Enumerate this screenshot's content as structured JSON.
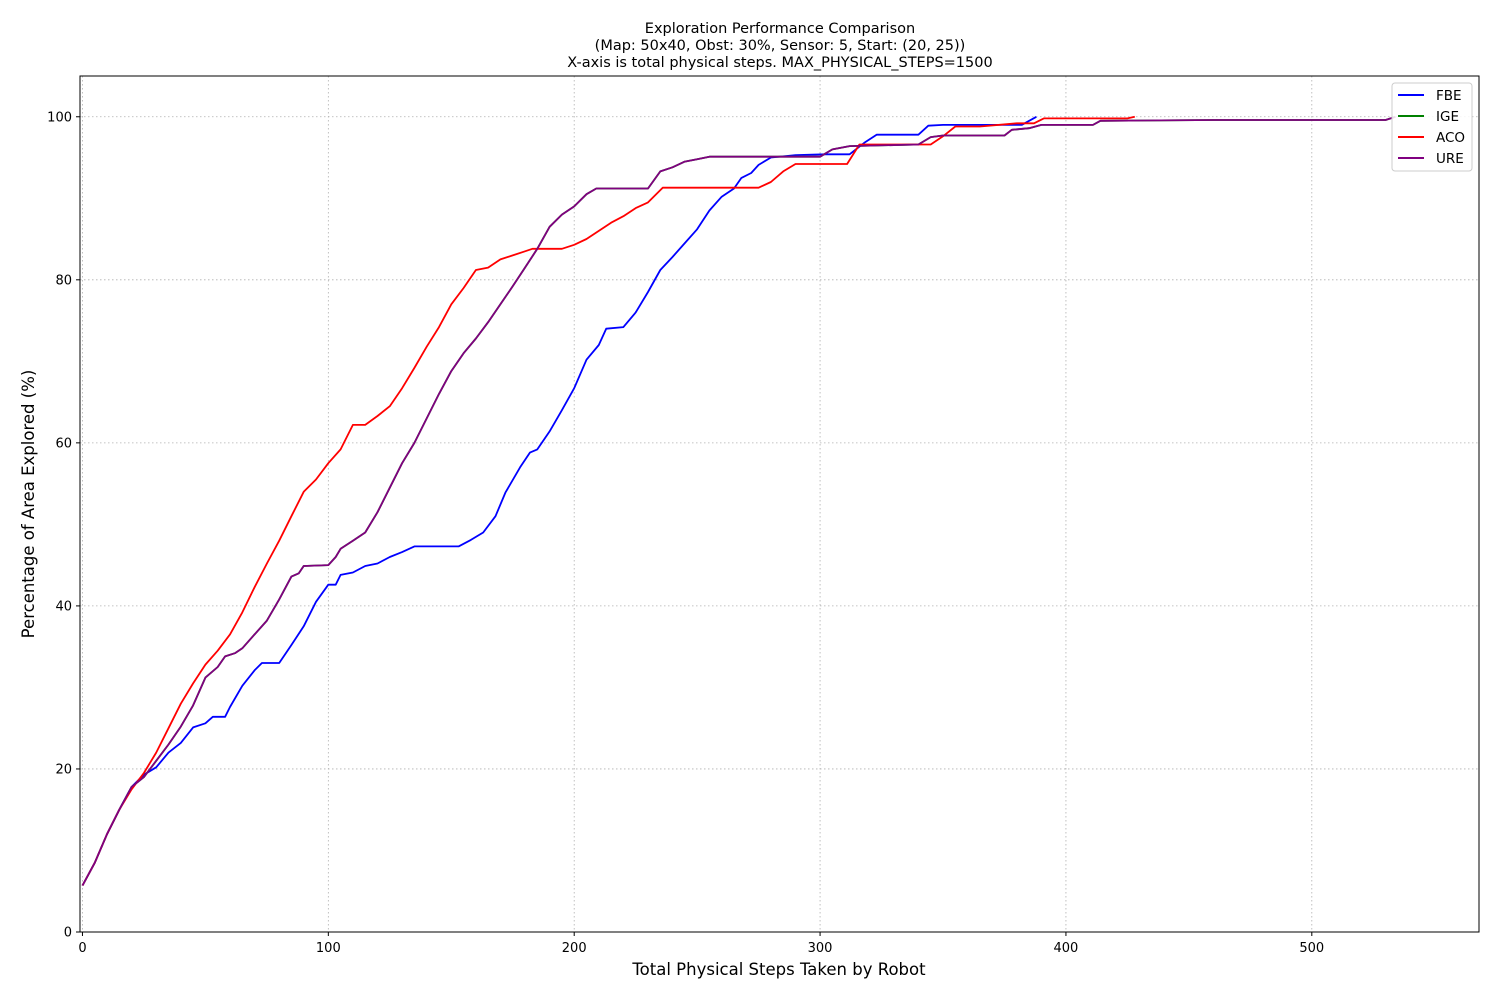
{
  "chart_data": {
    "type": "line",
    "title_lines": [
      "Exploration Performance Comparison",
      "(Map: 50x40, Obst: 30%, Sensor: 5, Start: (20, 25))",
      "X-axis is total physical steps. MAX_PHYSICAL_STEPS=1500"
    ],
    "xlabel": "Total Physical Steps Taken by Robot",
    "ylabel": "Percentage of Area Explored (%)",
    "xlim": [
      -1,
      568
    ],
    "ylim": [
      0,
      105
    ],
    "xticks": [
      0,
      100,
      200,
      300,
      400,
      500
    ],
    "yticks": [
      0,
      20,
      40,
      60,
      80,
      100
    ],
    "grid": true,
    "legend_position": "top-right",
    "series": [
      {
        "name": "FBE",
        "color": "#0000ff",
        "points": [
          [
            0,
            5.7
          ],
          [
            5,
            8.5
          ],
          [
            10,
            12
          ],
          [
            15,
            15
          ],
          [
            20,
            17.8
          ],
          [
            25,
            19.3
          ],
          [
            30,
            20.2
          ],
          [
            35,
            22
          ],
          [
            40,
            23.2
          ],
          [
            45,
            25.1
          ],
          [
            50,
            25.6
          ],
          [
            53,
            26.4
          ],
          [
            58,
            26.4
          ],
          [
            60,
            27.6
          ],
          [
            65,
            30.2
          ],
          [
            70,
            32.1
          ],
          [
            73,
            33
          ],
          [
            80,
            33
          ],
          [
            85,
            35.2
          ],
          [
            90,
            37.5
          ],
          [
            95,
            40.5
          ],
          [
            100,
            42.6
          ],
          [
            103,
            42.6
          ],
          [
            105,
            43.8
          ],
          [
            110,
            44.1
          ],
          [
            115,
            44.9
          ],
          [
            120,
            45.2
          ],
          [
            125,
            46
          ],
          [
            130,
            46.6
          ],
          [
            135,
            47.3
          ],
          [
            153,
            47.3
          ],
          [
            158,
            48.1
          ],
          [
            163,
            49
          ],
          [
            168,
            51
          ],
          [
            172,
            53.9
          ],
          [
            178,
            57
          ],
          [
            182,
            58.8
          ],
          [
            185,
            59.2
          ],
          [
            190,
            61.4
          ],
          [
            195,
            64
          ],
          [
            200,
            66.7
          ],
          [
            205,
            70.2
          ],
          [
            210,
            72
          ],
          [
            213,
            74
          ],
          [
            220,
            74.2
          ],
          [
            225,
            76
          ],
          [
            230,
            78.5
          ],
          [
            235,
            81.2
          ],
          [
            240,
            82.8
          ],
          [
            245,
            84.5
          ],
          [
            250,
            86.2
          ],
          [
            255,
            88.5
          ],
          [
            260,
            90.2
          ],
          [
            265,
            91.2
          ],
          [
            268,
            92.5
          ],
          [
            272,
            93.1
          ],
          [
            275,
            94.1
          ],
          [
            280,
            95
          ],
          [
            287,
            95.2
          ],
          [
            290,
            95.3
          ],
          [
            302,
            95.4
          ],
          [
            312,
            95.4
          ],
          [
            318,
            96.8
          ],
          [
            323,
            97.8
          ],
          [
            340,
            97.8
          ],
          [
            344,
            98.9
          ],
          [
            350,
            99
          ],
          [
            375,
            99
          ],
          [
            382,
            99
          ],
          [
            388,
            100
          ]
        ]
      },
      {
        "name": "IGE",
        "color": "#008000",
        "points": [
          [
            0,
            5.7
          ],
          [
            5,
            8.5
          ],
          [
            10,
            12
          ],
          [
            15,
            15
          ],
          [
            20,
            17.8
          ],
          [
            25,
            19
          ],
          [
            30,
            21
          ],
          [
            35,
            23
          ],
          [
            40,
            25.2
          ],
          [
            45,
            27.8
          ],
          [
            50,
            31.2
          ],
          [
            55,
            32.5
          ],
          [
            58,
            33.8
          ],
          [
            62,
            34.2
          ],
          [
            65,
            34.8
          ],
          [
            70,
            36.5
          ],
          [
            75,
            38.2
          ],
          [
            80,
            40.8
          ],
          [
            85,
            43.6
          ],
          [
            88,
            44
          ],
          [
            90,
            44.9
          ],
          [
            100,
            45
          ],
          [
            103,
            46
          ],
          [
            105,
            47
          ],
          [
            110,
            48
          ],
          [
            115,
            49
          ],
          [
            120,
            51.5
          ],
          [
            125,
            54.5
          ],
          [
            130,
            57.5
          ],
          [
            135,
            60
          ],
          [
            140,
            63
          ],
          [
            145,
            66
          ],
          [
            150,
            68.8
          ],
          [
            155,
            71
          ],
          [
            160,
            72.8
          ],
          [
            165,
            74.8
          ],
          [
            170,
            77
          ],
          [
            175,
            79.2
          ],
          [
            180,
            81.5
          ],
          [
            185,
            83.8
          ],
          [
            190,
            86.5
          ],
          [
            195,
            88
          ],
          [
            200,
            89
          ],
          [
            205,
            90.5
          ],
          [
            209,
            91.2
          ],
          [
            230,
            91.2
          ],
          [
            235,
            93.3
          ],
          [
            240,
            93.8
          ],
          [
            245,
            94.5
          ],
          [
            250,
            94.8
          ],
          [
            255,
            95.1
          ],
          [
            300,
            95.1
          ],
          [
            305,
            96
          ],
          [
            312,
            96.4
          ],
          [
            340,
            96.6
          ],
          [
            345,
            97.5
          ],
          [
            350,
            97.7
          ],
          [
            375,
            97.7
          ],
          [
            378,
            98.4
          ],
          [
            385,
            98.6
          ],
          [
            390,
            99
          ],
          [
            411,
            99
          ],
          [
            414,
            99.5
          ],
          [
            460,
            99.6
          ],
          [
            530,
            99.6
          ],
          [
            534,
            100
          ]
        ]
      },
      {
        "name": "ACO",
        "color": "#ff0000",
        "points": [
          [
            0,
            5.7
          ],
          [
            5,
            8.5
          ],
          [
            10,
            12
          ],
          [
            15,
            15
          ],
          [
            20,
            17.5
          ],
          [
            25,
            19.5
          ],
          [
            30,
            22
          ],
          [
            35,
            25
          ],
          [
            40,
            28
          ],
          [
            45,
            30.5
          ],
          [
            50,
            32.8
          ],
          [
            55,
            34.5
          ],
          [
            60,
            36.5
          ],
          [
            65,
            39.2
          ],
          [
            70,
            42.3
          ],
          [
            75,
            45.2
          ],
          [
            80,
            48
          ],
          [
            85,
            51
          ],
          [
            90,
            54
          ],
          [
            95,
            55.5
          ],
          [
            100,
            57.5
          ],
          [
            105,
            59.2
          ],
          [
            110,
            62.2
          ],
          [
            115,
            62.2
          ],
          [
            120,
            63.3
          ],
          [
            125,
            64.5
          ],
          [
            130,
            66.7
          ],
          [
            135,
            69.2
          ],
          [
            140,
            71.8
          ],
          [
            145,
            74.2
          ],
          [
            150,
            77
          ],
          [
            155,
            79
          ],
          [
            160,
            81.2
          ],
          [
            165,
            81.5
          ],
          [
            170,
            82.5
          ],
          [
            175,
            83
          ],
          [
            180,
            83.5
          ],
          [
            183,
            83.8
          ],
          [
            195,
            83.8
          ],
          [
            200,
            84.3
          ],
          [
            205,
            85
          ],
          [
            210,
            86
          ],
          [
            215,
            87
          ],
          [
            220,
            87.8
          ],
          [
            225,
            88.8
          ],
          [
            230,
            89.5
          ],
          [
            236,
            91.3
          ],
          [
            275,
            91.3
          ],
          [
            280,
            92
          ],
          [
            285,
            93.3
          ],
          [
            290,
            94.2
          ],
          [
            311,
            94.2
          ],
          [
            316,
            96.6
          ],
          [
            320,
            96.6
          ],
          [
            345,
            96.6
          ],
          [
            350,
            97.6
          ],
          [
            355,
            98.8
          ],
          [
            365,
            98.8
          ],
          [
            380,
            99.2
          ],
          [
            387,
            99.2
          ],
          [
            391,
            99.8
          ],
          [
            425,
            99.8
          ],
          [
            428,
            100
          ]
        ]
      },
      {
        "name": "URE",
        "color": "#800080",
        "points": [
          [
            0,
            5.7
          ],
          [
            5,
            8.5
          ],
          [
            10,
            12
          ],
          [
            15,
            15
          ],
          [
            20,
            17.8
          ],
          [
            25,
            19
          ],
          [
            30,
            21
          ],
          [
            35,
            23
          ],
          [
            40,
            25.2
          ],
          [
            45,
            27.8
          ],
          [
            50,
            31.2
          ],
          [
            55,
            32.5
          ],
          [
            58,
            33.8
          ],
          [
            62,
            34.2
          ],
          [
            65,
            34.8
          ],
          [
            70,
            36.5
          ],
          [
            75,
            38.2
          ],
          [
            80,
            40.8
          ],
          [
            85,
            43.6
          ],
          [
            88,
            44
          ],
          [
            90,
            44.9
          ],
          [
            100,
            45
          ],
          [
            103,
            46
          ],
          [
            105,
            47
          ],
          [
            110,
            48
          ],
          [
            115,
            49
          ],
          [
            120,
            51.5
          ],
          [
            125,
            54.5
          ],
          [
            130,
            57.5
          ],
          [
            135,
            60
          ],
          [
            140,
            63
          ],
          [
            145,
            66
          ],
          [
            150,
            68.8
          ],
          [
            155,
            71
          ],
          [
            160,
            72.8
          ],
          [
            165,
            74.8
          ],
          [
            170,
            77
          ],
          [
            175,
            79.2
          ],
          [
            180,
            81.5
          ],
          [
            185,
            83.8
          ],
          [
            190,
            86.5
          ],
          [
            195,
            88
          ],
          [
            200,
            89
          ],
          [
            205,
            90.5
          ],
          [
            209,
            91.2
          ],
          [
            230,
            91.2
          ],
          [
            235,
            93.3
          ],
          [
            240,
            93.8
          ],
          [
            245,
            94.5
          ],
          [
            250,
            94.8
          ],
          [
            255,
            95.1
          ],
          [
            300,
            95.1
          ],
          [
            305,
            96
          ],
          [
            312,
            96.4
          ],
          [
            340,
            96.6
          ],
          [
            345,
            97.5
          ],
          [
            350,
            97.7
          ],
          [
            375,
            97.7
          ],
          [
            378,
            98.4
          ],
          [
            385,
            98.6
          ],
          [
            390,
            99
          ],
          [
            411,
            99
          ],
          [
            414,
            99.5
          ],
          [
            460,
            99.6
          ],
          [
            530,
            99.6
          ],
          [
            534,
            100
          ]
        ]
      }
    ]
  }
}
